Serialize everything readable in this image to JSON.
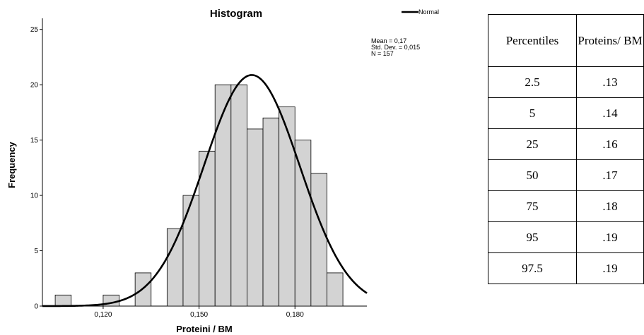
{
  "chart_data": {
    "type": "bar",
    "title": "Histogram",
    "xlabel": "Proteini / BM",
    "ylabel": "Frequency",
    "xlim": [
      0.101,
      0.2025
    ],
    "ylim": [
      0,
      26
    ],
    "xticks": [
      0.12,
      0.15,
      0.18
    ],
    "xtick_labels": [
      "0,120",
      "0,150",
      "0,180"
    ],
    "yticks": [
      0,
      5,
      10,
      15,
      20,
      25
    ],
    "ytick_labels": [
      "0",
      "5",
      "10",
      "15",
      "20",
      "25"
    ],
    "bin_width": 0.005,
    "bins": [
      {
        "x0": 0.105,
        "count": 1
      },
      {
        "x0": 0.11,
        "count": 0
      },
      {
        "x0": 0.115,
        "count": 0
      },
      {
        "x0": 0.12,
        "count": 1
      },
      {
        "x0": 0.125,
        "count": 0
      },
      {
        "x0": 0.13,
        "count": 3
      },
      {
        "x0": 0.135,
        "count": 0
      },
      {
        "x0": 0.14,
        "count": 7
      },
      {
        "x0": 0.145,
        "count": 10
      },
      {
        "x0": 0.15,
        "count": 14
      },
      {
        "x0": 0.155,
        "count": 20
      },
      {
        "x0": 0.16,
        "count": 20
      },
      {
        "x0": 0.165,
        "count": 16
      },
      {
        "x0": 0.17,
        "count": 17
      },
      {
        "x0": 0.175,
        "count": 18
      },
      {
        "x0": 0.18,
        "count": 15
      },
      {
        "x0": 0.185,
        "count": 12
      },
      {
        "x0": 0.19,
        "count": 3
      }
    ],
    "normal_curve": {
      "mean": 0.1665,
      "sd": 0.015,
      "n": 157
    },
    "legend": {
      "label": "Normal",
      "position": "top-right"
    },
    "stats": [
      "Mean = 0,17",
      "Std. Dev. = 0,015",
      "N = 157"
    ],
    "bar_color": "#d3d3d3",
    "curve_color": "#000000",
    "grid": false
  },
  "table": {
    "headers": [
      "Percentiles",
      "Proteins/ BM"
    ],
    "rows": [
      [
        "2.5",
        ".13"
      ],
      [
        "5",
        ".14"
      ],
      [
        "25",
        ".16"
      ],
      [
        "50",
        ".17"
      ],
      [
        "75",
        ".18"
      ],
      [
        "95",
        ".19"
      ],
      [
        "97.5",
        ".19"
      ]
    ]
  }
}
